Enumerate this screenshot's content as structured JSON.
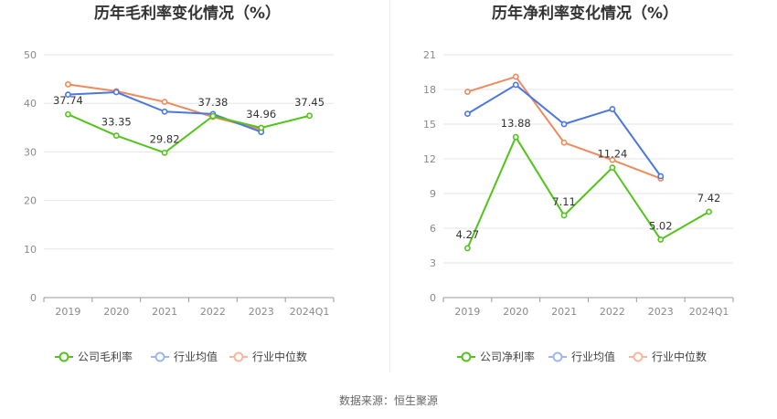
{
  "chart_data": [
    {
      "type": "line",
      "title": "历年毛利率变化情况（%）",
      "categories": [
        "2019",
        "2020",
        "2021",
        "2022",
        "2023",
        "2024Q1"
      ],
      "y_ticks": [
        "0",
        "10",
        "20",
        "30",
        "40",
        "50"
      ],
      "ylim": [
        0,
        50
      ],
      "grid": true,
      "legend_position": "bottom",
      "series": [
        {
          "name": "公司毛利率",
          "color": "#52c41a",
          "values": [
            37.74,
            33.35,
            29.82,
            37.38,
            34.96,
            37.45
          ],
          "labels": [
            "37.74",
            "33.35",
            "29.82",
            "37.38",
            "34.96",
            "37.45"
          ]
        },
        {
          "name": "行业均值",
          "color": "#4a78e0",
          "values": [
            41.8,
            42.3,
            38.3,
            37.8,
            34.1,
            null
          ]
        },
        {
          "name": "行业中位数",
          "color": "#f08a5d",
          "values": [
            43.9,
            42.5,
            40.3,
            37.2,
            34.6,
            null
          ]
        }
      ]
    },
    {
      "type": "line",
      "title": "历年净利率变化情况（%）",
      "categories": [
        "2019",
        "2020",
        "2021",
        "2022",
        "2023",
        "2024Q1"
      ],
      "y_ticks": [
        "0",
        "3",
        "6",
        "9",
        "12",
        "15",
        "18",
        "21"
      ],
      "ylim": [
        0,
        21
      ],
      "grid": true,
      "legend_position": "bottom",
      "series": [
        {
          "name": "公司净利率",
          "color": "#52c41a",
          "values": [
            4.27,
            13.88,
            7.11,
            11.24,
            5.02,
            7.42
          ],
          "labels": [
            "4.27",
            "13.88",
            "7.11",
            "11.24",
            "5.02",
            "7.42"
          ]
        },
        {
          "name": "行业均值",
          "color": "#4a78e0",
          "values": [
            15.9,
            18.4,
            15.0,
            16.3,
            10.5,
            null
          ]
        },
        {
          "name": "行业中位数",
          "color": "#f08a5d",
          "values": [
            17.8,
            19.1,
            13.4,
            11.9,
            10.3,
            null
          ]
        }
      ]
    }
  ],
  "source": "数据来源：恒生聚源",
  "legend_faded_colors": {
    "行业均值": "#9db7f0",
    "行业中位数": "#f6b89c"
  }
}
